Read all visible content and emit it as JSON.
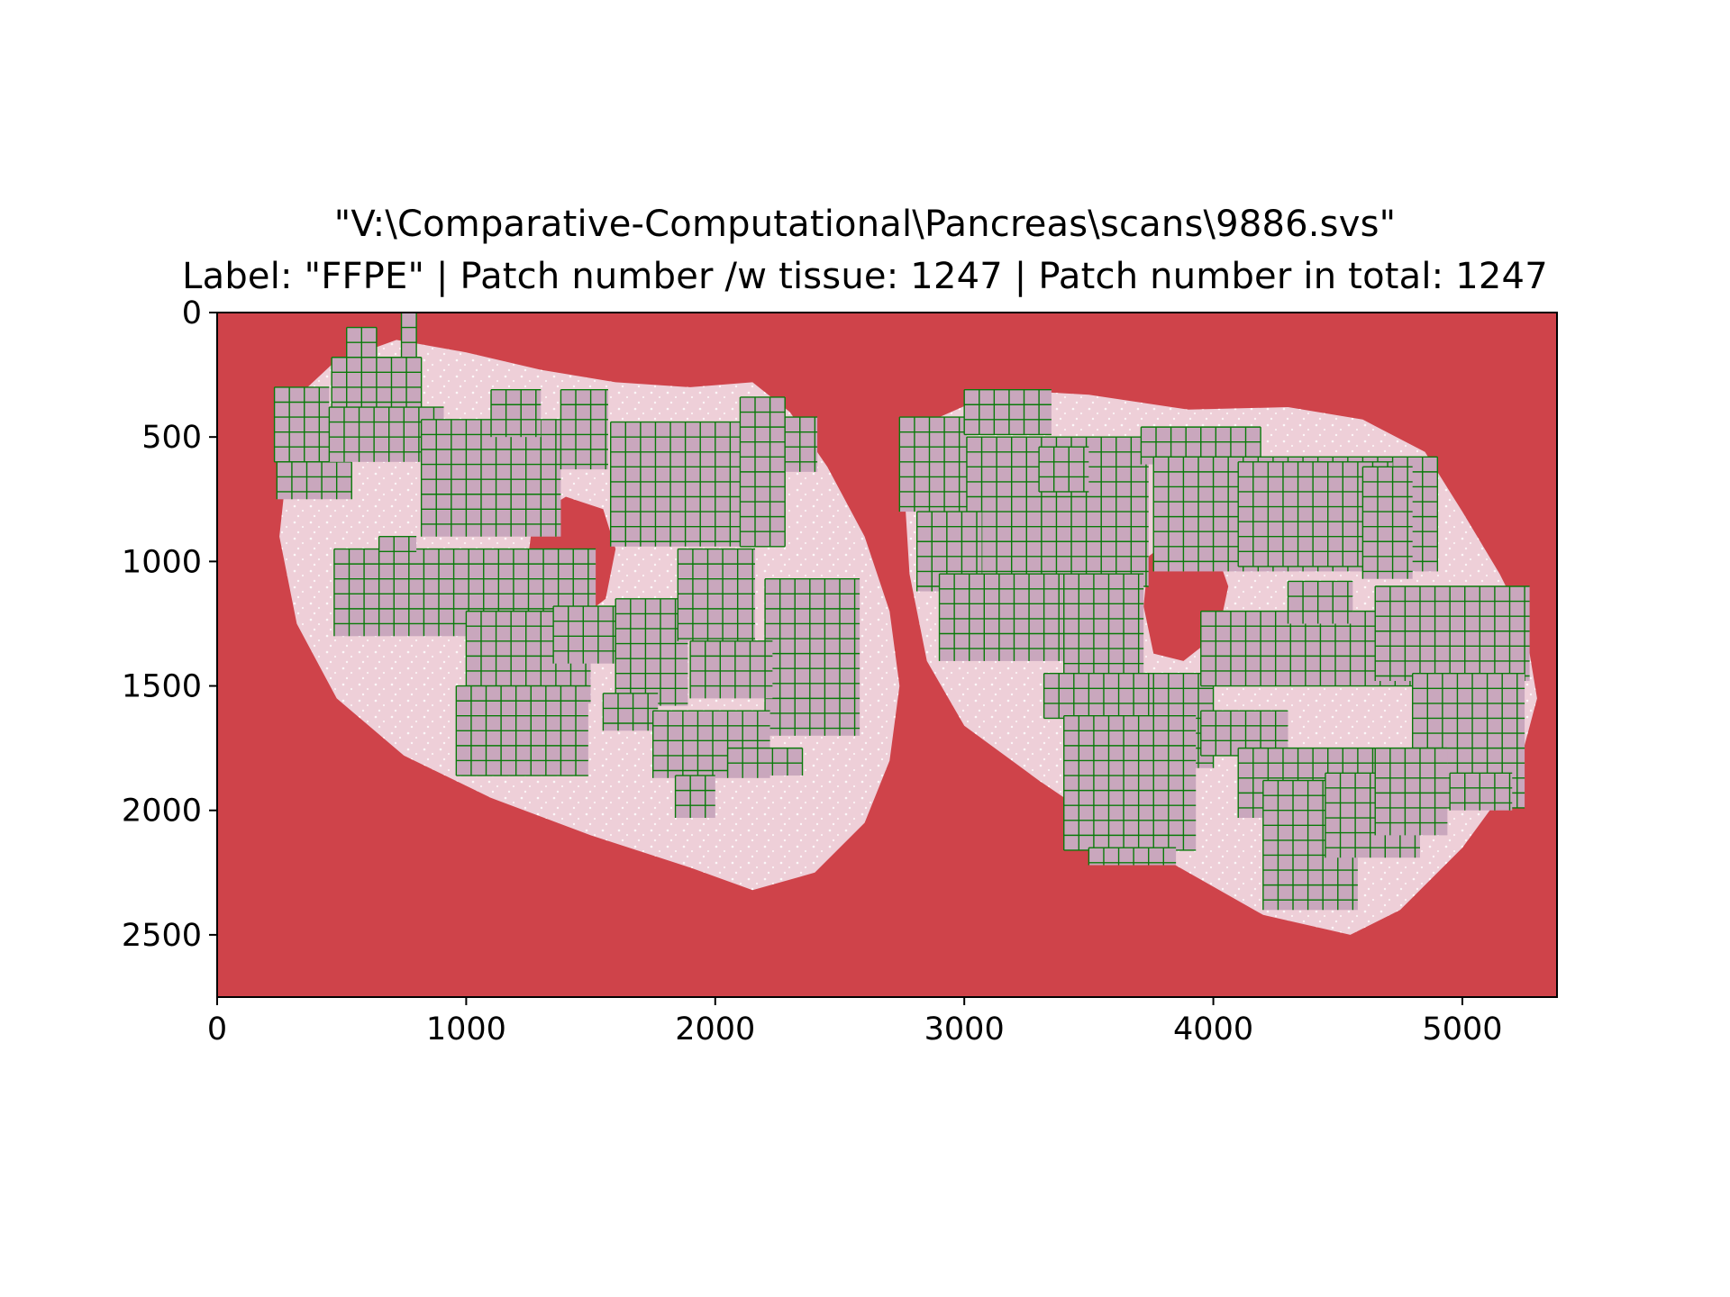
{
  "chart_data": {
    "type": "heatmap",
    "title_line1": "\"V:\\Comparative-Computational\\Pancreas\\scans\\9886.svs\"",
    "title_line2": "Label: \"FFPE\" | Patch number /w tissue: 1247 | Patch number in total: 1247",
    "xlim": [
      0,
      5380
    ],
    "ylim": [
      2750,
      0
    ],
    "x_ticks": [
      0,
      1000,
      2000,
      3000,
      4000,
      5000
    ],
    "y_ticks": [
      0,
      500,
      1000,
      1500,
      2000,
      2500
    ],
    "x_tick_labels": [
      "0",
      "1000",
      "2000",
      "3000",
      "4000",
      "5000"
    ],
    "y_tick_labels": [
      "0",
      "500",
      "1000",
      "1500",
      "2000",
      "2500"
    ],
    "patch_size": 60,
    "patch_count_with_tissue": 1247,
    "patch_count_total": 1247,
    "colors": {
      "background": "#cf434a",
      "tissue_fill": "#c9a7bd",
      "tissue_edge": "#eecfd8",
      "grid_line": "#0a7a0a",
      "axes": "#000000"
    },
    "tissue_sections": [
      {
        "name": "left-section",
        "outline": [
          [
            280,
            620
          ],
          [
            320,
            340
          ],
          [
            470,
            200
          ],
          [
            720,
            110
          ],
          [
            1000,
            160
          ],
          [
            1300,
            230
          ],
          [
            1600,
            280
          ],
          [
            1900,
            300
          ],
          [
            2150,
            280
          ],
          [
            2300,
            400
          ],
          [
            2450,
            620
          ],
          [
            2600,
            900
          ],
          [
            2700,
            1200
          ],
          [
            2740,
            1500
          ],
          [
            2700,
            1800
          ],
          [
            2600,
            2050
          ],
          [
            2400,
            2250
          ],
          [
            2150,
            2320
          ],
          [
            1900,
            2230
          ],
          [
            1500,
            2100
          ],
          [
            1100,
            1950
          ],
          [
            750,
            1780
          ],
          [
            480,
            1550
          ],
          [
            320,
            1250
          ],
          [
            250,
            900
          ]
        ],
        "lumen": [
          [
            1270,
            820
          ],
          [
            1400,
            740
          ],
          [
            1550,
            790
          ],
          [
            1600,
            950
          ],
          [
            1560,
            1150
          ],
          [
            1420,
            1260
          ],
          [
            1280,
            1230
          ],
          [
            1240,
            1050
          ]
        ]
      },
      {
        "name": "right-section",
        "outline": [
          [
            2760,
            720
          ],
          [
            2900,
            420
          ],
          [
            3150,
            310
          ],
          [
            3500,
            330
          ],
          [
            3900,
            390
          ],
          [
            4300,
            380
          ],
          [
            4600,
            430
          ],
          [
            4850,
            560
          ],
          [
            5000,
            800
          ],
          [
            5150,
            1050
          ],
          [
            5250,
            1250
          ],
          [
            5300,
            1550
          ],
          [
            5220,
            1850
          ],
          [
            5000,
            2150
          ],
          [
            4750,
            2400
          ],
          [
            4550,
            2500
          ],
          [
            4200,
            2420
          ],
          [
            3900,
            2250
          ],
          [
            3550,
            2050
          ],
          [
            3300,
            1880
          ],
          [
            3000,
            1660
          ],
          [
            2850,
            1400
          ],
          [
            2780,
            1050
          ]
        ],
        "lumen": [
          [
            3740,
            980
          ],
          [
            3870,
            880
          ],
          [
            4000,
            930
          ],
          [
            4060,
            1100
          ],
          [
            4020,
            1290
          ],
          [
            3880,
            1400
          ],
          [
            3760,
            1370
          ],
          [
            3720,
            1180
          ]
        ]
      }
    ],
    "patch_regions": [
      [
        520,
        60,
        120,
        120
      ],
      [
        740,
        0,
        60,
        180
      ],
      [
        460,
        180,
        360,
        200
      ],
      [
        230,
        300,
        220,
        300
      ],
      [
        240,
        600,
        300,
        150
      ],
      [
        450,
        380,
        460,
        220
      ],
      [
        820,
        430,
        560,
        470
      ],
      [
        1100,
        310,
        200,
        190
      ],
      [
        1380,
        310,
        190,
        320
      ],
      [
        1580,
        440,
        620,
        500
      ],
      [
        2100,
        340,
        180,
        600
      ],
      [
        2280,
        420,
        130,
        220
      ],
      [
        470,
        950,
        1050,
        350
      ],
      [
        650,
        900,
        150,
        100
      ],
      [
        1000,
        1200,
        500,
        370
      ],
      [
        1350,
        1180,
        370,
        230
      ],
      [
        1600,
        1150,
        290,
        430
      ],
      [
        1850,
        950,
        310,
        370
      ],
      [
        2200,
        1070,
        380,
        630
      ],
      [
        1900,
        1320,
        330,
        230
      ],
      [
        960,
        1500,
        530,
        360
      ],
      [
        1550,
        1530,
        220,
        150
      ],
      [
        1750,
        1600,
        470,
        270
      ],
      [
        1840,
        1860,
        160,
        170
      ],
      [
        2050,
        1750,
        300,
        110
      ],
      [
        2740,
        420,
        270,
        380
      ],
      [
        3000,
        310,
        350,
        180
      ],
      [
        3010,
        500,
        730,
        600
      ],
      [
        2810,
        800,
        260,
        320
      ],
      [
        3300,
        540,
        200,
        180
      ],
      [
        3710,
        460,
        480,
        150
      ],
      [
        3760,
        580,
        1140,
        460
      ],
      [
        4100,
        600,
        620,
        420
      ],
      [
        4600,
        620,
        200,
        450
      ],
      [
        2900,
        1050,
        500,
        350
      ],
      [
        3400,
        1050,
        320,
        440
      ],
      [
        3700,
        1450,
        300,
        380
      ],
      [
        3320,
        1450,
        420,
        180
      ],
      [
        3950,
        1200,
        1000,
        300
      ],
      [
        4300,
        1080,
        260,
        170
      ],
      [
        4650,
        1100,
        620,
        380
      ],
      [
        4800,
        1450,
        450,
        540
      ],
      [
        3400,
        1620,
        530,
        540
      ],
      [
        3500,
        2150,
        350,
        70
      ],
      [
        3950,
        1600,
        350,
        180
      ],
      [
        4100,
        1750,
        550,
        280
      ],
      [
        4200,
        1880,
        380,
        520
      ],
      [
        4450,
        1850,
        380,
        340
      ],
      [
        4650,
        1750,
        290,
        350
      ],
      [
        4950,
        1850,
        250,
        150
      ]
    ]
  }
}
